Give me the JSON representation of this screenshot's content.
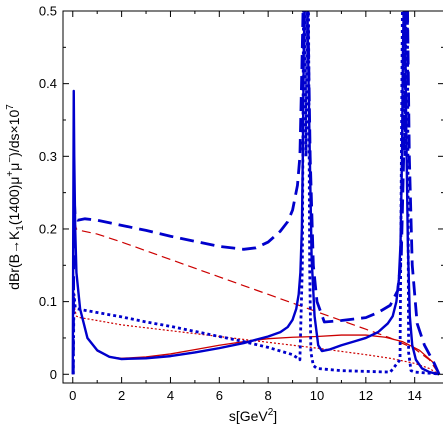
{
  "chart_data": {
    "type": "line",
    "xlabel": "s[GeV2]",
    "xlabel_parts": {
      "base": "s[GeV",
      "sup": "2",
      "tail": "]"
    },
    "ylabel": "dBr(B→K1(1400)μ+μ−)/ds×10^7",
    "ylabel_parts": [
      "dBr(B→K",
      "1",
      "(1400)μ",
      "+",
      "μ",
      "−",
      ")/ds×10",
      "7"
    ],
    "xlim": [
      -0.4,
      15.2
    ],
    "ylim": [
      -0.012,
      0.5
    ],
    "x_ticks": [
      0,
      2,
      4,
      6,
      8,
      10,
      12,
      14
    ],
    "x_tick_labels": [
      "0",
      "2",
      "4",
      "6",
      "8",
      "10",
      "12",
      "14"
    ],
    "y_ticks": [
      0,
      0.1,
      0.2,
      0.3,
      0.4,
      0.5
    ],
    "y_tick_labels": [
      "0",
      "0.1",
      "0.2",
      "0.3",
      "0.4",
      "0.5"
    ],
    "grid": false,
    "colors": {
      "blue": "#0000cc",
      "red": "#cc0000"
    },
    "series": [
      {
        "color": "#cc0000",
        "style": "dashed",
        "width": 1.2,
        "x": [
          0.0,
          0.03,
          0.08,
          0.15,
          0.3,
          1,
          2,
          3,
          4,
          5,
          6,
          7,
          8,
          9,
          10,
          11,
          12,
          13,
          14,
          14.6,
          15.0
        ],
        "y": [
          0.0,
          0.25,
          0.21,
          0.2,
          0.198,
          0.193,
          0.182,
          0.17,
          0.158,
          0.146,
          0.134,
          0.122,
          0.11,
          0.098,
          0.086,
          0.074,
          0.062,
          0.05,
          0.035,
          0.02,
          0.0
        ]
      },
      {
        "color": "#cc0000",
        "style": "dotted",
        "width": 1.2,
        "x": [
          0.0,
          0.03,
          0.08,
          0.15,
          0.3,
          1,
          2,
          4,
          6,
          8,
          10,
          12,
          13,
          14,
          14.6,
          15.0
        ],
        "y": [
          0.0,
          0.12,
          0.09,
          0.08,
          0.078,
          0.074,
          0.068,
          0.06,
          0.052,
          0.044,
          0.036,
          0.027,
          0.022,
          0.015,
          0.008,
          0.0
        ]
      },
      {
        "color": "#cc0000",
        "style": "solid",
        "width": 1.3,
        "x": [
          0.0,
          0.02,
          0.04,
          0.06,
          0.1,
          0.15,
          0.3,
          0.6,
          1.0,
          1.5,
          2.0,
          3,
          4,
          5,
          6,
          7,
          8,
          9,
          10,
          11,
          12,
          12.8,
          13.5,
          14.2,
          14.8,
          15.0
        ],
        "y": [
          0.0,
          0.2,
          0.39,
          0.3,
          0.2,
          0.14,
          0.09,
          0.05,
          0.032,
          0.024,
          0.022,
          0.024,
          0.028,
          0.034,
          0.04,
          0.045,
          0.049,
          0.051,
          0.052,
          0.054,
          0.054,
          0.051,
          0.045,
          0.033,
          0.015,
          0.0
        ]
      },
      {
        "color": "#0000cc",
        "style": "dashed",
        "width": 2.8,
        "x": [
          0.02,
          0.05,
          0.1,
          0.2,
          0.5,
          1,
          2,
          3,
          4,
          5,
          6,
          7,
          7.5,
          8,
          8.5,
          8.8,
          9.0,
          9.2,
          9.3,
          9.38,
          9.44,
          9.5,
          9.55,
          9.62,
          9.72,
          9.85,
          10.0,
          10.3,
          11,
          12,
          12.5,
          13.0,
          13.3,
          13.45,
          13.55,
          13.62,
          13.7,
          13.78,
          13.9,
          14.1,
          14.4,
          14.8,
          15.0
        ],
        "y": [
          0.0,
          0.25,
          0.215,
          0.212,
          0.214,
          0.212,
          0.205,
          0.198,
          0.19,
          0.183,
          0.176,
          0.172,
          0.174,
          0.182,
          0.197,
          0.21,
          0.226,
          0.26,
          0.3,
          0.42,
          0.52,
          0.52,
          0.52,
          0.52,
          0.3,
          0.15,
          0.1,
          0.072,
          0.074,
          0.078,
          0.085,
          0.095,
          0.115,
          0.16,
          0.3,
          0.52,
          0.52,
          0.3,
          0.15,
          0.07,
          0.04,
          0.015,
          0.0
        ]
      },
      {
        "color": "#0000cc",
        "style": "dotted",
        "width": 2.8,
        "x": [
          0.02,
          0.05,
          0.1,
          0.2,
          0.5,
          1,
          2,
          3,
          4,
          5,
          6,
          7,
          8,
          9,
          9.3,
          9.4,
          9.45,
          9.5,
          9.55,
          9.6,
          9.65,
          9.7,
          9.75,
          9.85,
          10,
          11,
          12,
          13,
          13.4,
          13.5,
          13.55,
          13.6,
          13.65,
          13.7,
          13.75,
          13.85,
          14,
          14.4,
          14.8,
          15.0
        ],
        "y": [
          0.0,
          0.11,
          0.092,
          0.09,
          0.088,
          0.085,
          0.079,
          0.072,
          0.066,
          0.059,
          0.052,
          0.045,
          0.037,
          0.027,
          0.02,
          0.15,
          0.52,
          0.52,
          0.3,
          0.52,
          0.52,
          0.15,
          0.03,
          0.012,
          0.008,
          0.005,
          0.004,
          0.003,
          0.02,
          0.52,
          0.52,
          0.3,
          0.52,
          0.52,
          0.03,
          0.005,
          0.003,
          0.002,
          0.001,
          0.0
        ]
      },
      {
        "color": "#0000cc",
        "style": "solid",
        "width": 2.4,
        "x": [
          0.0,
          0.02,
          0.04,
          0.06,
          0.1,
          0.15,
          0.3,
          0.6,
          1.0,
          1.5,
          2.0,
          3,
          4,
          5,
          6,
          7,
          8,
          8.5,
          8.8,
          9.0,
          9.15,
          9.25,
          9.32,
          9.38,
          9.42,
          9.46,
          9.5,
          9.55,
          9.6,
          9.68,
          9.78,
          9.9,
          10.05,
          10.2,
          10.5,
          11,
          11.5,
          12,
          12.5,
          12.9,
          13.1,
          13.25,
          13.35,
          13.42,
          13.48,
          13.52,
          13.56,
          13.6,
          13.65,
          13.72,
          13.8,
          13.9,
          14.05,
          14.3,
          14.6,
          15.0
        ],
        "y": [
          0.0,
          0.2,
          0.39,
          0.3,
          0.2,
          0.14,
          0.09,
          0.05,
          0.033,
          0.024,
          0.021,
          0.022,
          0.025,
          0.03,
          0.036,
          0.043,
          0.052,
          0.058,
          0.065,
          0.075,
          0.09,
          0.11,
          0.14,
          0.2,
          0.3,
          0.45,
          0.52,
          0.52,
          0.52,
          0.35,
          0.16,
          0.08,
          0.04,
          0.032,
          0.034,
          0.04,
          0.045,
          0.05,
          0.058,
          0.07,
          0.08,
          0.1,
          0.13,
          0.18,
          0.3,
          0.45,
          0.52,
          0.52,
          0.35,
          0.18,
          0.08,
          0.04,
          0.02,
          0.008,
          0.003,
          0.0
        ]
      }
    ]
  }
}
